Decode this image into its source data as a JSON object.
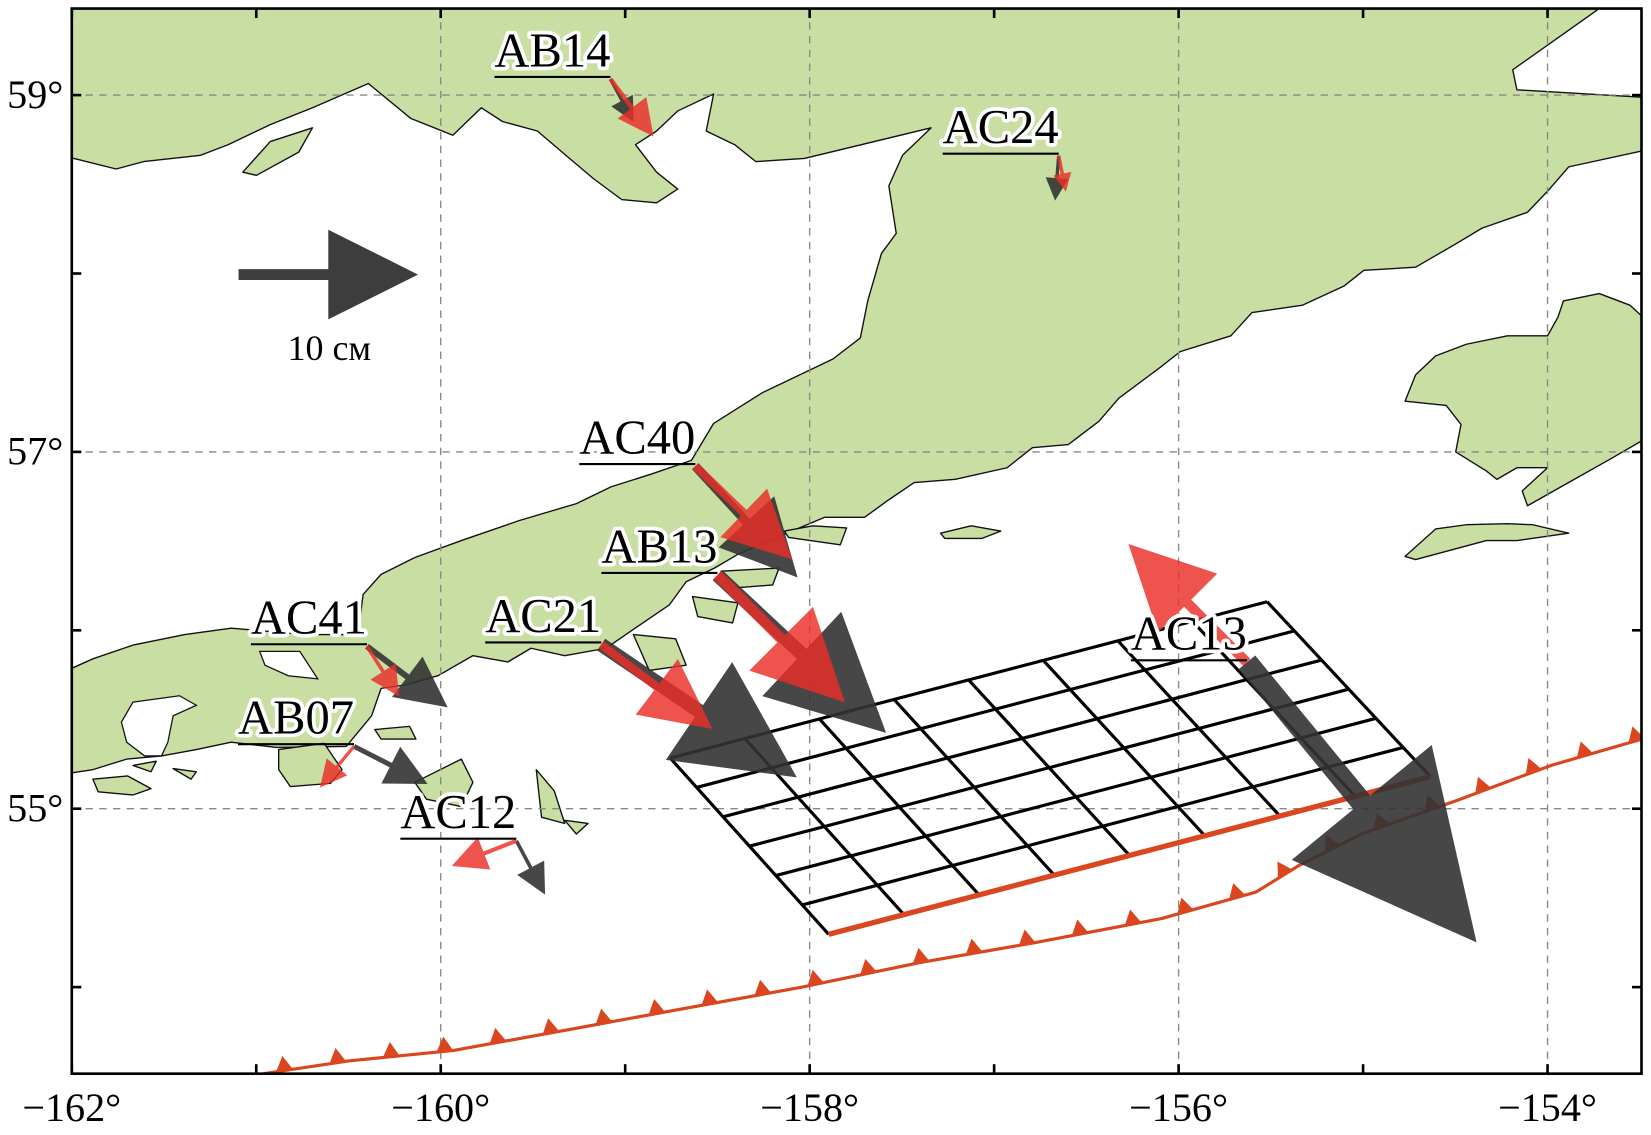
{
  "map": {
    "lon_range": [
      -162,
      -153.49
    ],
    "lat_range": [
      53.51,
      59.49
    ],
    "lon_labels": [
      {
        "lon": -162,
        "text": "−162°"
      },
      {
        "lon": -160,
        "text": "−160°"
      },
      {
        "lon": -158,
        "text": "−158°"
      },
      {
        "lon": -156,
        "text": "−156°"
      },
      {
        "lon": -154,
        "text": "−154°"
      }
    ],
    "lat_labels": [
      {
        "lat": 55,
        "text": "55°"
      },
      {
        "lat": 57,
        "text": "57°"
      },
      {
        "lat": 59,
        "text": "59°"
      }
    ],
    "minor_lon_ticks": [
      -161,
      -159,
      -157,
      -155
    ],
    "minor_lat_ticks": [
      54,
      56,
      58
    ],
    "gridlines": true
  },
  "scale": {
    "length_cm": 10,
    "label": "10 см"
  },
  "colors": {
    "land": "#c9dea3",
    "gray_vector": "#333333",
    "red_vector": "#ea2d27",
    "trench": "#d9461f",
    "fault_grid": "#000000"
  },
  "stations": [
    {
      "name": "AB14",
      "lon": -159.08,
      "lat": 59.09,
      "gray_cm": [
        1.3,
        -2.4
      ],
      "red_cm": [
        2.4,
        -3.2
      ]
    },
    {
      "name": "AC24",
      "lon": -156.65,
      "lat": 58.66,
      "gray_cm": [
        -0.2,
        -2.5
      ],
      "red_cm": [
        0.4,
        -2.0
      ]
    },
    {
      "name": "AC40",
      "lon": -158.62,
      "lat": 56.92,
      "gray_cm": [
        5.7,
        -6.2
      ],
      "red_cm": [
        5.4,
        -5.2
      ]
    },
    {
      "name": "AB13",
      "lon": -158.5,
      "lat": 56.31,
      "gray_cm": [
        9.4,
        -8.8
      ],
      "red_cm": [
        7.1,
        -7.1
      ]
    },
    {
      "name": "AC21",
      "lon": -159.13,
      "lat": 55.92,
      "gray_cm": [
        10.9,
        -7.4
      ],
      "red_cm": [
        6.2,
        -4.7
      ]
    },
    {
      "name": "AC41",
      "lon": -160.4,
      "lat": 55.91,
      "gray_cm": [
        4.5,
        -3.4
      ],
      "red_cm": [
        1.8,
        -2.8
      ]
    },
    {
      "name": "AB07",
      "lon": -160.47,
      "lat": 55.35,
      "gray_cm": [
        4.1,
        -2.1
      ],
      "red_cm": [
        -1.9,
        -2.3
      ]
    },
    {
      "name": "AC12",
      "lon": -159.59,
      "lat": 54.82,
      "gray_cm": [
        1.6,
        -3.0
      ],
      "red_cm": [
        -3.6,
        -1.4
      ]
    },
    {
      "name": "AC13",
      "lon": -155.63,
      "lat": 55.82,
      "gray_cm": [
        12.8,
        -15.6
      ],
      "red_cm": [
        -6.6,
        6.6
      ]
    }
  ],
  "fault_plane": {
    "corners_lonlat": {
      "top_left": [
        -158.756,
        55.284
      ],
      "top_right": [
        -155.52,
        56.16
      ],
      "bottom_right": [
        -154.635,
        55.18
      ],
      "bottom_left": [
        -157.897,
        54.296
      ]
    },
    "along_strike_cells": 8,
    "down_dip_cells": 6
  },
  "trench": {
    "points_lonlat": [
      [
        -160.96,
        53.515
      ],
      [
        -160.5,
        53.586
      ],
      [
        -159.93,
        53.645
      ],
      [
        -159.3,
        53.763
      ],
      [
        -158.67,
        53.882
      ],
      [
        -158.04,
        54.0
      ],
      [
        -157.41,
        54.136
      ],
      [
        -156.78,
        54.249
      ],
      [
        -156.09,
        54.385
      ],
      [
        -155.58,
        54.533
      ],
      [
        -155.35,
        54.68
      ],
      [
        -155.01,
        54.858
      ],
      [
        -154.49,
        55.047
      ],
      [
        -153.98,
        55.243
      ],
      [
        -153.49,
        55.39
      ]
    ]
  }
}
